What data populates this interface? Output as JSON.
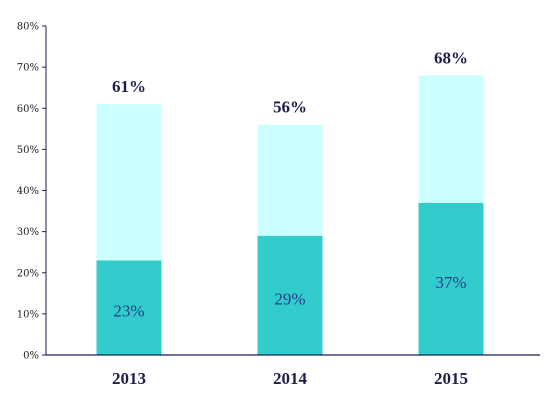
{
  "chart_data": {
    "type": "bar",
    "stacked": true,
    "categories": [
      "2013",
      "2014",
      "2015"
    ],
    "series": [
      {
        "values": [
          23,
          29,
          37
        ],
        "color": "#33cccc"
      },
      {
        "values": [
          38,
          27,
          31
        ],
        "color": "#ccffff"
      }
    ],
    "totals": [
      61,
      56,
      68
    ],
    "inner_labels": [
      "23%",
      "29%",
      "37%"
    ],
    "total_labels": [
      "61%",
      "56%",
      "68%"
    ],
    "yticks": [
      "0%",
      "10%",
      "20%",
      "30%",
      "40%",
      "50%",
      "60%",
      "70%",
      "80%"
    ],
    "ylim": [
      0,
      80
    ],
    "grid": false,
    "axis_color": "#1b1f4b"
  }
}
